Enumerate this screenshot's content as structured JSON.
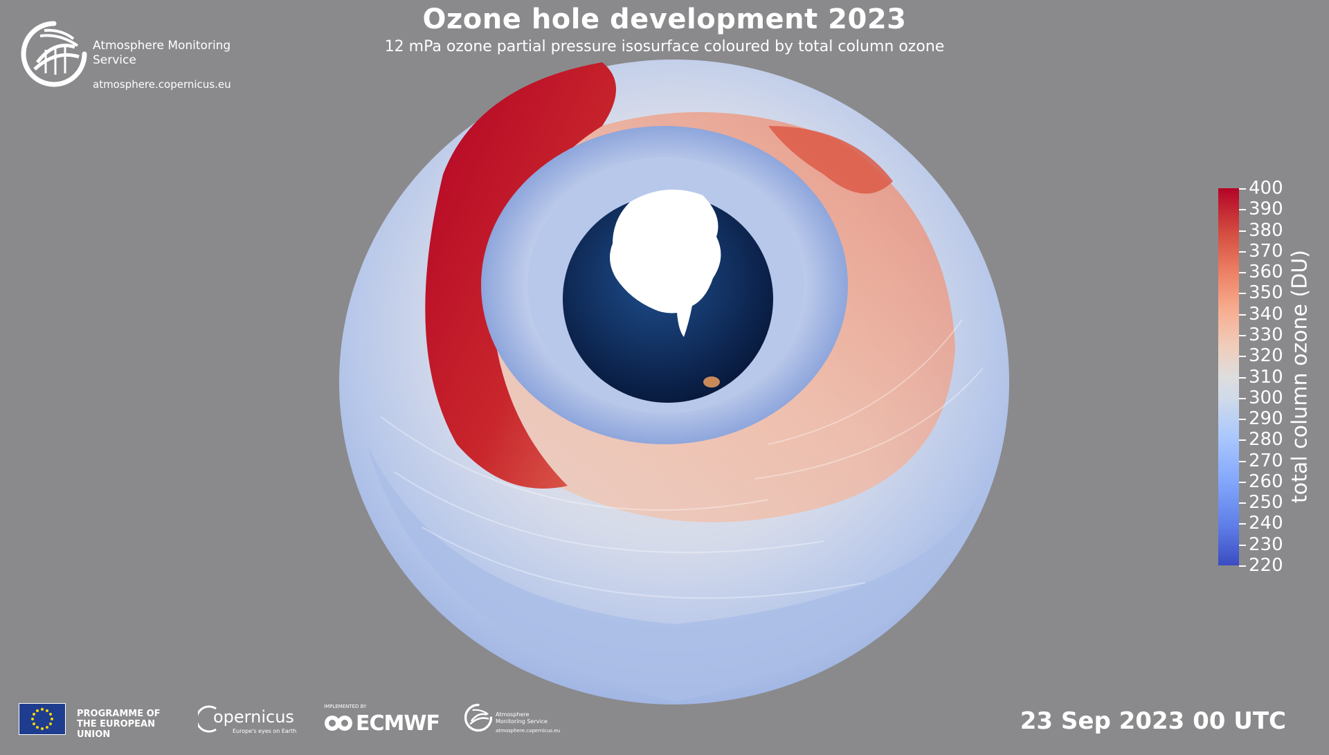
{
  "header": {
    "title": "Ozone hole development 2023",
    "subtitle": "12 mPa ozone partial pressure isosurface coloured by total column ozone"
  },
  "branding": {
    "service_name": "Atmosphere Monitoring Service",
    "service_url": "atmosphere.copernicus.eu",
    "eu_programme": "PROGRAMME OF THE EUROPEAN UNION",
    "copernicus_word": "opernicus",
    "copernicus_c": "C",
    "copernicus_tagline": "Europe's eyes on Earth",
    "ecmwf_implemented": "IMPLEMENTED BY",
    "ecmwf_word": "ECMWF",
    "small_service_name": "Atmosphere Monitoring Service",
    "small_service_url": "atmosphere.copernicus.eu"
  },
  "colorbar": {
    "axis_label": "total column ozone (DU)",
    "min": 220,
    "max": 400,
    "ticks": [
      "400",
      "390",
      "380",
      "370",
      "360",
      "350",
      "340",
      "330",
      "320",
      "310",
      "300",
      "290",
      "280",
      "270",
      "260",
      "250",
      "240",
      "230",
      "220"
    ]
  },
  "footer": {
    "datetime": "23 Sep 2023 00 UTC"
  },
  "colors": {
    "background": "#8a8a8c",
    "high": "#b40426",
    "mid": "#dddddd",
    "low": "#3b4cc0",
    "ocean": "#0f2a5c",
    "ice": "#ffffff"
  },
  "icons": {
    "cams_logo": "globe-arcs-icon",
    "eu_flag": "eu-flag-icon",
    "ecmwf_logo": "ecmwf-icon"
  }
}
